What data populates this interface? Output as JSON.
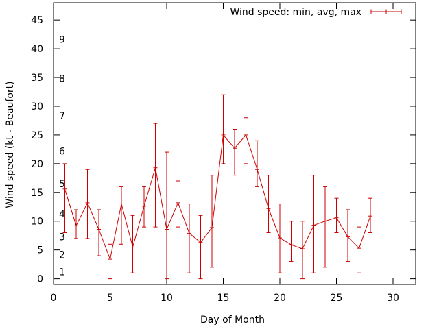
{
  "chart_data": {
    "type": "line",
    "title": "",
    "xlabel": "Day of Month",
    "ylabel": "Wind speed (kt - Beaufort)",
    "xlim": [
      0,
      32
    ],
    "ylim": [
      -1,
      48
    ],
    "xticks": [
      0,
      5,
      10,
      15,
      20,
      25,
      30
    ],
    "yticks": [
      0,
      5,
      10,
      15,
      20,
      25,
      30,
      35,
      40,
      45
    ],
    "legend": "top-right",
    "grid": false,
    "color": "#cc0000",
    "beaufort_labels": [
      {
        "label": "1",
        "y": 1.2
      },
      {
        "label": "2",
        "y": 4.2
      },
      {
        "label": "3",
        "y": 7.3
      },
      {
        "label": "4",
        "y": 11.3
      },
      {
        "label": "5",
        "y": 16.5
      },
      {
        "label": "6",
        "y": 22.2
      },
      {
        "label": "7",
        "y": 28.3
      },
      {
        "label": "8",
        "y": 34.8
      },
      {
        "label": "9",
        "y": 41.6
      }
    ],
    "series": [
      {
        "name": "Wind speed: min, avg, max",
        "points": [
          {
            "x": 1,
            "min": 8,
            "avg": 15.6,
            "max": 20
          },
          {
            "x": 2,
            "min": 7,
            "avg": 9.2,
            "max": 12
          },
          {
            "x": 3,
            "min": 7,
            "avg": 13.2,
            "max": 19
          },
          {
            "x": 4,
            "min": 4,
            "avg": 8.6,
            "max": 12
          },
          {
            "x": 5,
            "min": 0,
            "avg": 3.4,
            "max": 6
          },
          {
            "x": 6,
            "min": 6,
            "avg": 13.0,
            "max": 16
          },
          {
            "x": 7,
            "min": 1,
            "avg": 5.5,
            "max": 11
          },
          {
            "x": 8,
            "min": 9,
            "avg": 12.6,
            "max": 16
          },
          {
            "x": 9,
            "min": 9,
            "avg": 19.3,
            "max": 27
          },
          {
            "x": 10,
            "min": 0,
            "avg": 8.6,
            "max": 22
          },
          {
            "x": 11,
            "min": 9,
            "avg": 13.2,
            "max": 17
          },
          {
            "x": 12,
            "min": 1,
            "avg": 7.9,
            "max": 13
          },
          {
            "x": 13,
            "min": 0,
            "avg": 6.3,
            "max": 11
          },
          {
            "x": 14,
            "min": 2,
            "avg": 8.9,
            "max": 18
          },
          {
            "x": 15,
            "min": 20,
            "avg": 25.0,
            "max": 32
          },
          {
            "x": 16,
            "min": 18,
            "avg": 22.7,
            "max": 26
          },
          {
            "x": 17,
            "min": 20,
            "avg": 25.0,
            "max": 28
          },
          {
            "x": 18,
            "min": 16,
            "avg": 19.0,
            "max": 24
          },
          {
            "x": 19,
            "min": 8,
            "avg": 12.2,
            "max": 18
          },
          {
            "x": 20,
            "min": 1,
            "avg": 7.1,
            "max": 13
          },
          {
            "x": 21,
            "min": 3,
            "avg": 5.9,
            "max": 10
          },
          {
            "x": 22,
            "min": 0,
            "avg": 5.2,
            "max": 10
          },
          {
            "x": 23,
            "min": 1,
            "avg": 9.3,
            "max": 18
          },
          {
            "x": 24,
            "min": 2,
            "avg": 10.0,
            "max": 16
          },
          {
            "x": 25,
            "min": 8,
            "avg": 10.6,
            "max": 14
          },
          {
            "x": 26,
            "min": 3,
            "avg": 7.3,
            "max": 12
          },
          {
            "x": 27,
            "min": 1,
            "avg": 5.3,
            "max": 9
          },
          {
            "x": 28,
            "min": 8,
            "avg": 10.9,
            "max": 14
          }
        ]
      }
    ]
  }
}
